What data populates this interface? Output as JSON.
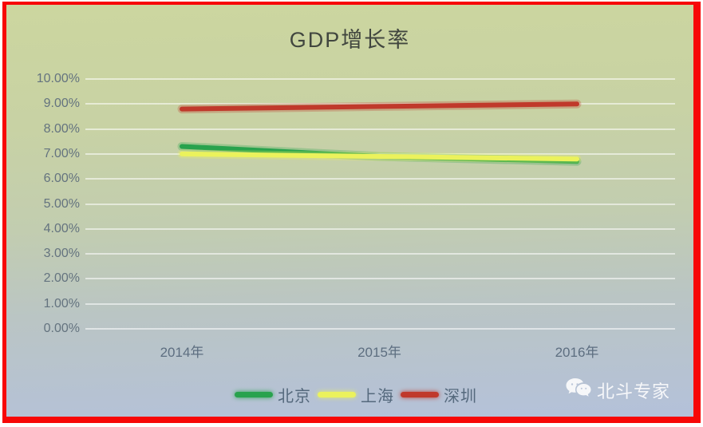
{
  "frame": {
    "border_color": "#f70707",
    "background_top": "#ccd69f",
    "background_bottom": "#b4c1da"
  },
  "chart_data": {
    "type": "line",
    "title": "GDP增长率",
    "categories": [
      "2014年",
      "2015年",
      "2016年"
    ],
    "series": [
      {
        "name": "北京",
        "color": "#28a24d",
        "values": [
          7.3,
          6.9,
          6.7
        ]
      },
      {
        "name": "上海",
        "color": "#ebf25c",
        "values": [
          7.0,
          6.9,
          6.8
        ]
      },
      {
        "name": "深圳",
        "color": "#c0392b",
        "values": [
          8.8,
          8.9,
          9.0
        ]
      }
    ],
    "xlabel": "",
    "ylabel": "",
    "ylim": [
      0,
      10
    ],
    "y_tick_step": 1,
    "y_tick_labels_top_to_bottom": [
      "10.00%",
      "9.00%",
      "8.00%",
      "7.00%",
      "6.00%",
      "5.00%",
      "4.00%",
      "3.00%",
      "2.00%",
      "1.00%",
      "0.00%"
    ],
    "grid": true,
    "gridline_color": "rgba(255,255,255,0.55)",
    "legend_position": "bottom"
  },
  "watermark": {
    "label": "北斗专家",
    "icon": "chat-bubbles-icon"
  }
}
